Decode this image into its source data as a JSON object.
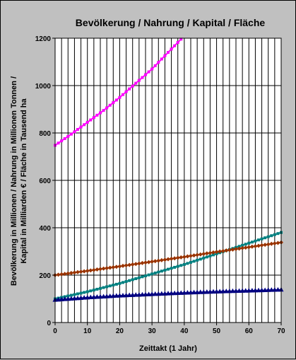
{
  "chart_data": {
    "type": "line",
    "title": "Bevölkerung / Nahrung / Kapital / Fläche",
    "xlabel": "Zeittakt (1 Jahr)",
    "ylabel_line1": "Bevölkerung in Millionen / Nahrung in Millionen Tonnen /",
    "ylabel_line2": "Kapital in Milliarden € / Fläche in Tausend ha",
    "xlim": [
      0,
      70
    ],
    "ylim": [
      0,
      1200
    ],
    "xticks": [
      0,
      10,
      20,
      30,
      40,
      50,
      60,
      70
    ],
    "yticks": [
      0,
      200,
      400,
      600,
      800,
      1000,
      1200
    ],
    "grid": {
      "vertical_every": 2,
      "horizontal_every": 200
    },
    "plot_background": "#ffffff",
    "series": [
      {
        "color": "#ff00ff",
        "marker": "square",
        "x": [
          0,
          5,
          10,
          15,
          20,
          25,
          30,
          35,
          40
        ],
        "values": [
          748,
          795,
          845,
          895,
          950,
          1010,
          1070,
          1140,
          1210
        ]
      },
      {
        "color": "#008080",
        "marker": "square",
        "x": [
          0,
          10,
          20,
          30,
          40,
          50,
          60,
          70
        ],
        "values": [
          100,
          130,
          165,
          205,
          245,
          290,
          335,
          380
        ]
      },
      {
        "color": "#993300",
        "marker": "diamond",
        "x": [
          0,
          10,
          20,
          30,
          40,
          50,
          60,
          70
        ],
        "values": [
          200,
          218,
          237,
          257,
          277,
          298,
          318,
          338
        ]
      },
      {
        "color": "#000080",
        "marker": "triangle",
        "x": [
          0,
          10,
          20,
          30,
          40,
          50,
          60,
          70
        ],
        "values": [
          95,
          105,
          113,
          119,
          125,
          130,
          134,
          138
        ]
      }
    ]
  }
}
